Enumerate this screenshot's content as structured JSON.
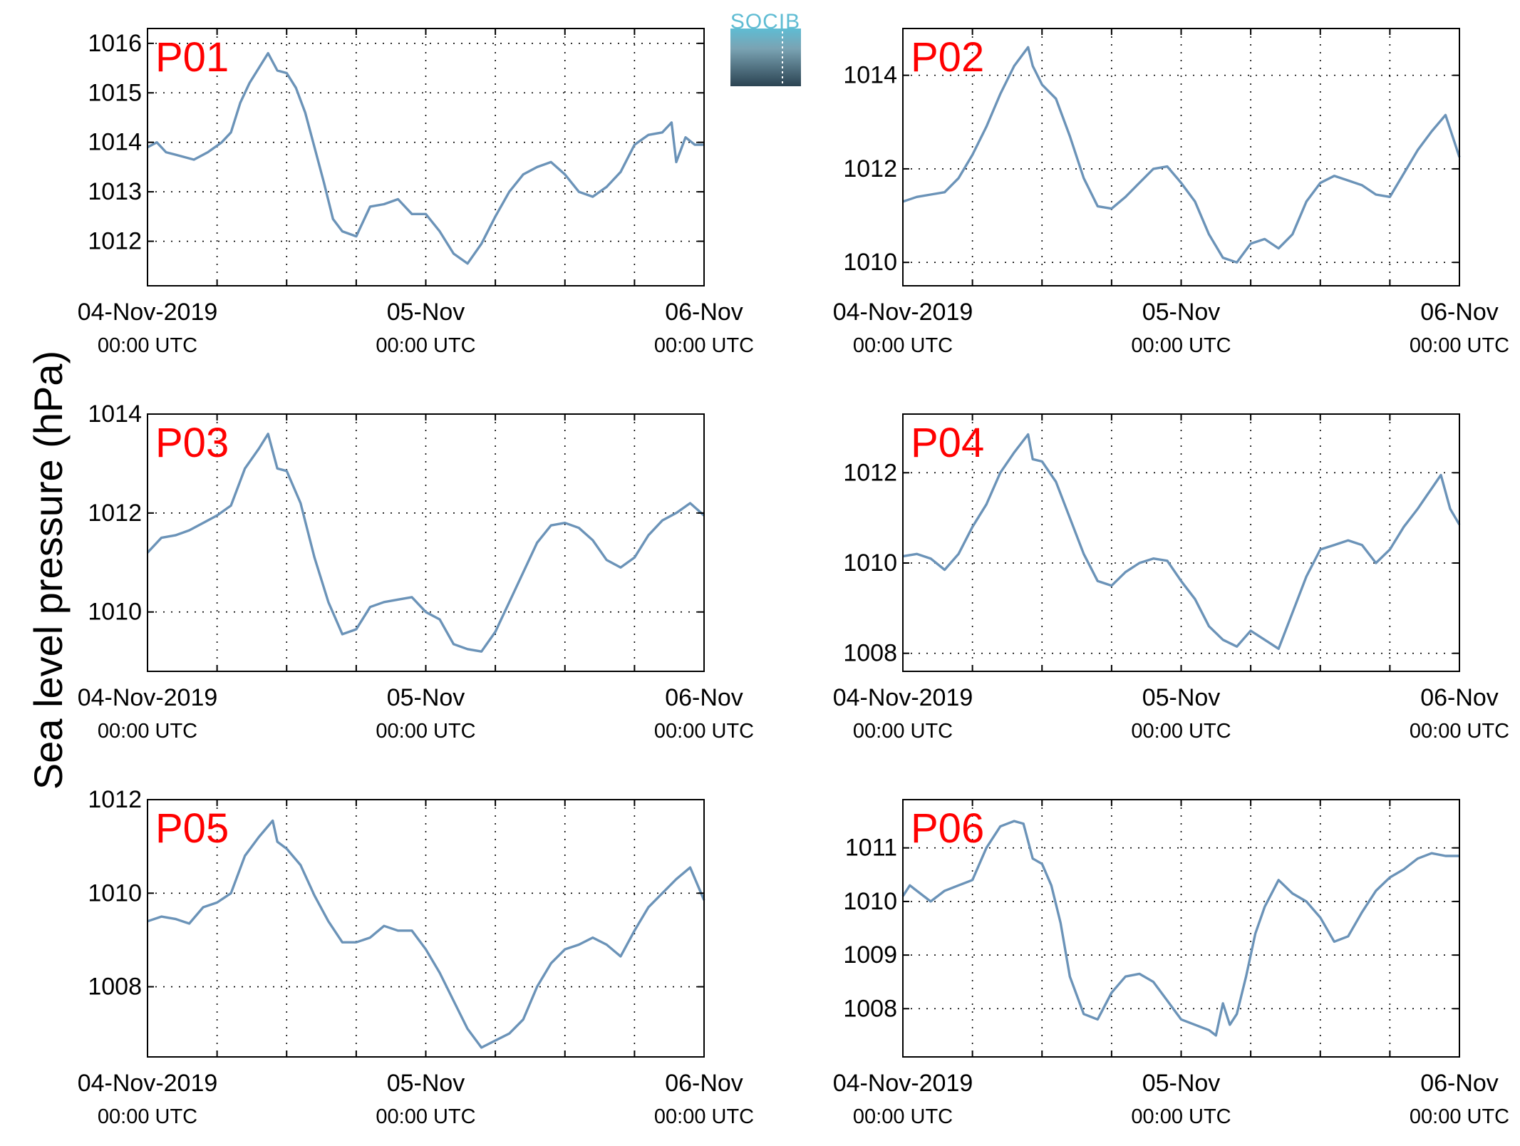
{
  "figure": {
    "ylabel": "Sea level pressure (hPa)",
    "logo_text": "SOCIB",
    "colors": {
      "line": "#6b93b8",
      "label": "#ff0000",
      "axis": "#000000",
      "grid": "#000000"
    }
  },
  "chart_data": [
    {
      "type": "line",
      "panel_label": "P01",
      "x_ticks": [
        "04-Nov-2019",
        "05-Nov",
        "06-Nov"
      ],
      "x_tick_sub": [
        "00:00 UTC",
        "00:00 UTC",
        "00:00 UTC"
      ],
      "x_tick_hours": [
        0,
        24,
        48
      ],
      "xlim_hours": [
        0,
        48
      ],
      "ylim": [
        1011.1,
        1016.3
      ],
      "y_ticks": [
        1012,
        1013,
        1014,
        1015,
        1016
      ],
      "grid": true,
      "x_hours": [
        0,
        0.8,
        1.6,
        2.4,
        3.2,
        4.0,
        5.2,
        6.4,
        7.2,
        8.0,
        8.8,
        9.6,
        10.4,
        11.2,
        12.0,
        12.8,
        13.6,
        14.4,
        15.2,
        16.0,
        16.8,
        18.0,
        19.2,
        20.4,
        21.6,
        22.8,
        24.0,
        25.2,
        26.4,
        27.6,
        28.8,
        30.0,
        31.2,
        32.4,
        33.6,
        34.8,
        36.0,
        37.2,
        38.4,
        39.6,
        40.8,
        42.0,
        43.2,
        44.4,
        45.2,
        45.6,
        46.4,
        47.2,
        48.0
      ],
      "values": [
        1013.9,
        1014.0,
        1013.8,
        1013.75,
        1013.7,
        1013.65,
        1013.8,
        1014.0,
        1014.2,
        1014.8,
        1015.2,
        1015.5,
        1015.8,
        1015.45,
        1015.4,
        1015.1,
        1014.6,
        1013.9,
        1013.2,
        1012.45,
        1012.2,
        1012.1,
        1012.7,
        1012.75,
        1012.85,
        1012.55,
        1012.55,
        1012.2,
        1011.75,
        1011.55,
        1011.95,
        1012.5,
        1013.0,
        1013.35,
        1013.5,
        1013.6,
        1013.35,
        1013.0,
        1012.9,
        1013.1,
        1013.4,
        1013.95,
        1014.15,
        1014.2,
        1014.4,
        1013.6,
        1014.1,
        1013.95,
        1013.95
      ]
    },
    {
      "type": "line",
      "panel_label": "P02",
      "x_ticks": [
        "04-Nov-2019",
        "05-Nov",
        "06-Nov"
      ],
      "x_tick_sub": [
        "00:00 UTC",
        "00:00 UTC",
        "00:00 UTC"
      ],
      "x_tick_hours": [
        0,
        24,
        48
      ],
      "xlim_hours": [
        0,
        48
      ],
      "ylim": [
        1009.5,
        1015.0
      ],
      "y_ticks": [
        1010,
        1012,
        1014
      ],
      "grid": true,
      "x_hours": [
        0,
        1.2,
        2.4,
        3.6,
        4.8,
        6.0,
        7.2,
        8.4,
        9.6,
        10.8,
        11.2,
        12.0,
        13.2,
        14.4,
        15.6,
        16.8,
        18.0,
        19.2,
        20.4,
        21.6,
        22.8,
        24.0,
        25.2,
        26.4,
        27.6,
        28.8,
        30.0,
        31.2,
        32.4,
        33.6,
        34.8,
        36.0,
        37.2,
        38.4,
        39.6,
        40.8,
        42.0,
        43.2,
        44.4,
        45.6,
        46.8,
        48.0
      ],
      "values": [
        1011.3,
        1011.4,
        1011.45,
        1011.5,
        1011.8,
        1012.3,
        1012.9,
        1013.6,
        1014.2,
        1014.6,
        1014.2,
        1013.8,
        1013.5,
        1012.7,
        1011.8,
        1011.2,
        1011.15,
        1011.4,
        1011.7,
        1012.0,
        1012.05,
        1011.7,
        1011.3,
        1010.6,
        1010.1,
        1010.0,
        1010.4,
        1010.5,
        1010.3,
        1010.6,
        1011.3,
        1011.7,
        1011.85,
        1011.75,
        1011.65,
        1011.45,
        1011.4,
        1011.9,
        1012.4,
        1012.8,
        1013.15,
        1012.25
      ]
    },
    {
      "type": "line",
      "panel_label": "P03",
      "x_ticks": [
        "04-Nov-2019",
        "05-Nov",
        "06-Nov"
      ],
      "x_tick_sub": [
        "00:00 UTC",
        "00:00 UTC",
        "00:00 UTC"
      ],
      "x_tick_hours": [
        0,
        24,
        48
      ],
      "xlim_hours": [
        0,
        48
      ],
      "ylim": [
        1008.8,
        1014.0
      ],
      "y_ticks": [
        1010,
        1012,
        1014
      ],
      "grid": true,
      "x_hours": [
        0,
        1.2,
        2.4,
        3.6,
        4.8,
        6.0,
        7.2,
        8.4,
        9.6,
        10.4,
        11.2,
        12.0,
        13.2,
        14.4,
        15.6,
        16.8,
        18.0,
        19.2,
        20.4,
        21.6,
        22.8,
        24.0,
        25.2,
        26.4,
        27.6,
        28.8,
        30.0,
        31.2,
        32.4,
        33.6,
        34.8,
        36.0,
        37.2,
        38.4,
        39.6,
        40.8,
        42.0,
        43.2,
        44.4,
        45.6,
        46.8,
        48.0
      ],
      "values": [
        1011.2,
        1011.5,
        1011.55,
        1011.65,
        1011.8,
        1011.95,
        1012.15,
        1012.9,
        1013.3,
        1013.6,
        1012.9,
        1012.85,
        1012.2,
        1011.1,
        1010.2,
        1009.55,
        1009.65,
        1010.1,
        1010.2,
        1010.25,
        1010.3,
        1010.0,
        1009.85,
        1009.35,
        1009.25,
        1009.2,
        1009.6,
        1010.2,
        1010.8,
        1011.4,
        1011.75,
        1011.8,
        1011.7,
        1011.45,
        1011.05,
        1010.9,
        1011.1,
        1011.55,
        1011.85,
        1012.0,
        1012.2,
        1011.95
      ]
    },
    {
      "type": "line",
      "panel_label": "P04",
      "x_ticks": [
        "04-Nov-2019",
        "05-Nov",
        "06-Nov"
      ],
      "x_tick_sub": [
        "00:00 UTC",
        "00:00 UTC",
        "00:00 UTC"
      ],
      "x_tick_hours": [
        0,
        24,
        48
      ],
      "xlim_hours": [
        0,
        48
      ],
      "ylim": [
        1007.6,
        1013.3
      ],
      "y_ticks": [
        1008,
        1010,
        1012
      ],
      "grid": true,
      "x_hours": [
        0,
        1.2,
        2.4,
        3.6,
        4.8,
        6.0,
        7.2,
        8.4,
        9.6,
        10.8,
        11.2,
        12.0,
        13.2,
        14.4,
        15.6,
        16.8,
        18.0,
        19.2,
        20.4,
        21.6,
        22.8,
        24.0,
        25.2,
        26.4,
        27.6,
        28.8,
        30.0,
        31.2,
        32.4,
        33.6,
        34.8,
        36.0,
        37.2,
        38.4,
        39.6,
        40.8,
        42.0,
        43.2,
        44.4,
        45.2,
        45.6,
        46.4,
        47.2,
        48.0
      ],
      "values": [
        1010.15,
        1010.2,
        1010.1,
        1009.85,
        1010.2,
        1010.8,
        1011.3,
        1012.0,
        1012.45,
        1012.85,
        1012.3,
        1012.25,
        1011.8,
        1011.0,
        1010.2,
        1009.6,
        1009.5,
        1009.8,
        1010.0,
        1010.1,
        1010.05,
        1009.6,
        1009.2,
        1008.6,
        1008.3,
        1008.15,
        1008.5,
        1008.3,
        1008.1,
        1008.9,
        1009.7,
        1010.3,
        1010.4,
        1010.5,
        1010.4,
        1010.0,
        1010.3,
        1010.8,
        1011.2,
        1011.5,
        1011.65,
        1011.95,
        1011.2,
        1010.85
      ]
    },
    {
      "type": "line",
      "panel_label": "P05",
      "x_ticks": [
        "04-Nov-2019",
        "05-Nov",
        "06-Nov"
      ],
      "x_tick_sub": [
        "00:00 UTC",
        "00:00 UTC",
        "00:00 UTC"
      ],
      "x_tick_hours": [
        0,
        24,
        48
      ],
      "xlim_hours": [
        0,
        48
      ],
      "ylim": [
        1006.5,
        1012.0
      ],
      "y_ticks": [
        1008,
        1010,
        1012
      ],
      "grid": true,
      "x_hours": [
        0,
        1.2,
        2.4,
        3.6,
        4.8,
        6.0,
        7.2,
        8.4,
        9.6,
        10.8,
        11.2,
        12.0,
        13.2,
        14.4,
        15.6,
        16.8,
        18.0,
        19.2,
        20.4,
        21.6,
        22.8,
        24.0,
        25.2,
        26.4,
        27.6,
        28.8,
        30.0,
        31.2,
        32.4,
        33.6,
        34.8,
        36.0,
        37.2,
        38.4,
        39.6,
        40.8,
        42.0,
        43.2,
        44.4,
        45.6,
        46.8,
        48.0
      ],
      "values": [
        1009.4,
        1009.5,
        1009.45,
        1009.35,
        1009.7,
        1009.8,
        1010.0,
        1010.8,
        1011.2,
        1011.55,
        1011.1,
        1010.95,
        1010.6,
        1009.95,
        1009.4,
        1008.95,
        1008.95,
        1009.05,
        1009.3,
        1009.2,
        1009.2,
        1008.8,
        1008.3,
        1007.7,
        1007.1,
        1006.7,
        1006.85,
        1007.0,
        1007.3,
        1008.0,
        1008.5,
        1008.8,
        1008.9,
        1009.05,
        1008.9,
        1008.65,
        1009.2,
        1009.7,
        1010.0,
        1010.3,
        1010.55,
        1009.85
      ]
    },
    {
      "type": "line",
      "panel_label": "P06",
      "x_ticks": [
        "04-Nov-2019",
        "05-Nov",
        "06-Nov"
      ],
      "x_tick_sub": [
        "00:00 UTC",
        "00:00 UTC",
        "00:00 UTC"
      ],
      "x_tick_hours": [
        0,
        24,
        48
      ],
      "xlim_hours": [
        0,
        48
      ],
      "ylim": [
        1007.1,
        1011.9
      ],
      "y_ticks": [
        1008,
        1009,
        1010,
        1011
      ],
      "grid": true,
      "x_hours": [
        0,
        0.6,
        1.2,
        2.4,
        3.6,
        4.8,
        6.0,
        7.2,
        8.4,
        9.6,
        10.4,
        11.2,
        12.0,
        12.8,
        13.6,
        14.4,
        15.6,
        16.8,
        18.0,
        19.2,
        20.4,
        21.6,
        22.8,
        24.0,
        25.2,
        26.4,
        27.0,
        27.6,
        28.2,
        28.8,
        29.6,
        30.4,
        31.2,
        32.4,
        33.6,
        34.8,
        36.0,
        37.2,
        38.4,
        39.6,
        40.8,
        42.0,
        43.2,
        44.4,
        45.6,
        46.8,
        48.0
      ],
      "values": [
        1010.1,
        1010.3,
        1010.2,
        1010.0,
        1010.2,
        1010.3,
        1010.4,
        1011.0,
        1011.4,
        1011.5,
        1011.45,
        1010.8,
        1010.7,
        1010.3,
        1009.6,
        1008.6,
        1007.9,
        1007.8,
        1008.3,
        1008.6,
        1008.65,
        1008.5,
        1008.15,
        1007.8,
        1007.7,
        1007.6,
        1007.5,
        1008.1,
        1007.7,
        1007.9,
        1008.6,
        1009.4,
        1009.9,
        1010.4,
        1010.15,
        1010.0,
        1009.7,
        1009.25,
        1009.35,
        1009.8,
        1010.2,
        1010.45,
        1010.6,
        1010.8,
        1010.9,
        1010.85,
        1010.85
      ]
    }
  ]
}
